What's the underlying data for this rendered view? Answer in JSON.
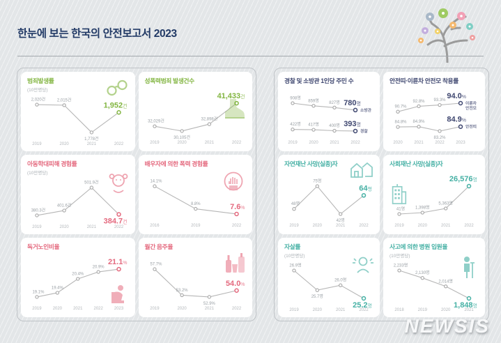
{
  "header": {
    "title": "한눈에 보는 한국의 안전보고서 2023"
  },
  "watermark": {
    "text": "NEWSIS"
  },
  "chart_data": [
    {
      "type": "line",
      "name": "crime-rate",
      "group": "left",
      "title": "범죄발생률",
      "subtitle": "(10만명당)",
      "color": "#82b541",
      "icon": "handcuffs-icon",
      "categories": [
        "2019",
        "2020",
        "2021",
        "2022"
      ],
      "series": [
        {
          "name": "",
          "values": [
            2020,
            2015,
            1778,
            1952
          ],
          "labels": [
            "2,020건",
            "2,015건",
            "1,778건"
          ],
          "highlight": {
            "value": "1,952",
            "unit": "건",
            "pos": "above"
          }
        }
      ]
    },
    {
      "type": "line",
      "name": "sexual-violence-cases",
      "group": "left",
      "title": "성폭력범죄 발생건수",
      "subtitle": "",
      "color": "#82b541",
      "icon": "boot-icon",
      "categories": [
        "2019",
        "2020",
        "2021",
        "2022"
      ],
      "series": [
        {
          "name": "",
          "values": [
            32029,
            30105,
            32898,
            41433
          ],
          "labels": [
            "32,029건",
            "30,105건",
            "32,898건"
          ],
          "highlight": {
            "value": "41,433",
            "unit": "건",
            "pos": "above"
          }
        }
      ]
    },
    {
      "type": "line",
      "name": "child-abuse-rate",
      "group": "left",
      "title": "아동학대피해 경험률",
      "subtitle": "(10만명당)",
      "color": "#e4697e",
      "icon": "child-icon",
      "categories": [
        "2019",
        "2020",
        "2021",
        "2022"
      ],
      "series": [
        {
          "name": "",
          "values": [
            380.3,
            401.6,
            501.9,
            384.7
          ],
          "labels": [
            "380.3건",
            "401.6건",
            "501.9건"
          ],
          "highlight": {
            "value": "384.7",
            "unit": "건",
            "pos": "below"
          }
        }
      ]
    },
    {
      "type": "line",
      "name": "spousal-violence-rate",
      "group": "left",
      "title": "배우자에 의한 폭력 경험률",
      "subtitle": "",
      "color": "#e4697e",
      "icon": "hand-icon",
      "categories": [
        "2016",
        "2019",
        "2022"
      ],
      "series": [
        {
          "name": "",
          "values": [
            14.1,
            8.8,
            7.6
          ],
          "labels": [
            "14.1%",
            "8.8%"
          ],
          "highlight": {
            "value": "7.6",
            "unit": "%",
            "pos": "above"
          }
        }
      ]
    },
    {
      "type": "line",
      "name": "elderly-living-alone-rate",
      "group": "left",
      "title": "독거노인비율",
      "subtitle": "",
      "color": "#e4697e",
      "icon": "person-chair-icon",
      "categories": [
        "2019",
        "2020",
        "2021",
        "2022",
        "2023"
      ],
      "series": [
        {
          "name": "",
          "values": [
            19.1,
            19.4,
            20.4,
            20.9,
            21.1
          ],
          "labels": [
            "19.1%",
            "19.4%",
            "20.4%",
            "20.9%"
          ],
          "highlight": {
            "value": "21.1",
            "unit": "%",
            "pos": "above"
          }
        }
      ]
    },
    {
      "type": "line",
      "name": "monthly-drinking-rate",
      "group": "left",
      "title": "월간 음주율",
      "subtitle": "",
      "color": "#e4697e",
      "icon": "bottles-icon",
      "categories": [
        "2019",
        "2020",
        "2021",
        "2022"
      ],
      "series": [
        {
          "name": "",
          "values": [
            57.7,
            53.2,
            52.9,
            54.0
          ],
          "labels": [
            "57.7%",
            "53.2%",
            "52.9%"
          ],
          "highlight": {
            "value": "54.0",
            "unit": "%",
            "pos": "above"
          }
        }
      ]
    },
    {
      "type": "line",
      "name": "residents-per-police-firefighter",
      "group": "right",
      "title": "경찰 및 소방관 1인당 주민 수",
      "subtitle": "",
      "color": "#3e466f",
      "icon": "",
      "categories": [
        "2019",
        "2020",
        "2021",
        "2022"
      ],
      "series": [
        {
          "name": "소방관",
          "values": [
            908,
            859,
            827,
            780
          ],
          "labels": [
            "908명",
            "859명",
            "827명"
          ],
          "highlight": {
            "value": "780",
            "unit": "명",
            "pos": "above"
          }
        },
        {
          "name": "경찰",
          "values": [
            422,
            417,
            400,
            393
          ],
          "labels": [
            "422명",
            "417명",
            "400명"
          ],
          "highlight": {
            "value": "393",
            "unit": "명",
            "pos": "above"
          }
        }
      ]
    },
    {
      "type": "line",
      "name": "seatbelt-helmet-wearing-rate",
      "group": "right",
      "title": "안전띠·이륜차 안전모 착용률",
      "subtitle": "",
      "color": "#3e466f",
      "icon": "",
      "categories": [
        "2020",
        "2021",
        "2022",
        "2023"
      ],
      "series": [
        {
          "name": "이륜차\n안전모",
          "values": [
            90.7,
            92.8,
            93.3,
            94.0
          ],
          "labels": [
            "90.7%",
            "92.8%",
            "93.3%"
          ],
          "highlight": {
            "value": "94.0",
            "unit": "%",
            "pos": "above"
          }
        },
        {
          "name": "안전띠",
          "values": [
            84.8,
            84.9,
            83.2,
            84.9
          ],
          "labels": [
            "84.8%",
            "84.9%",
            "83.2%"
          ],
          "highlight": {
            "value": "84.9",
            "unit": "%",
            "pos": "above"
          }
        }
      ]
    },
    {
      "type": "line",
      "name": "natural-disaster-deaths",
      "group": "right",
      "title": "자연재난 사망(실종)자",
      "subtitle": "",
      "color": "#45b0a4",
      "icon": "houses-icon",
      "categories": [
        "2019",
        "2020",
        "2021",
        "2022"
      ],
      "series": [
        {
          "name": "",
          "values": [
            48,
            75,
            42,
            64
          ],
          "labels": [
            "48명",
            "75명",
            "42명"
          ],
          "highlight": {
            "value": "64",
            "unit": "명",
            "pos": "above"
          }
        }
      ]
    },
    {
      "type": "line",
      "name": "social-disaster-deaths",
      "group": "right",
      "title": "사회재난 사망(실종)자",
      "subtitle": "",
      "color": "#45b0a4",
      "icon": "building-icon",
      "categories": [
        "2019",
        "2020",
        "2021",
        "2022"
      ],
      "series": [
        {
          "name": "",
          "values": [
            41,
            1398,
            5363,
            26576
          ],
          "labels": [
            "41명",
            "1,398명",
            "5,363명"
          ],
          "highlight": {
            "value": "26,576",
            "unit": "명",
            "pos": "above"
          }
        }
      ]
    },
    {
      "type": "line",
      "name": "suicide-rate",
      "group": "right",
      "title": "자살률",
      "subtitle": "(10만명당)",
      "color": "#45b0a4",
      "icon": "person-cry-icon",
      "categories": [
        "2019",
        "2020",
        "2021",
        "2022"
      ],
      "series": [
        {
          "name": "",
          "values": [
            26.9,
            25.7,
            26.0,
            25.2
          ],
          "labels": [
            "26.9명",
            "25.7명",
            "26.0명"
          ],
          "highlight": {
            "value": "25.2",
            "unit": "명",
            "pos": "below"
          }
        }
      ]
    },
    {
      "type": "line",
      "name": "accident-hospitalization-rate",
      "group": "right",
      "title": "사고에 의한 병원 입원율",
      "subtitle": "(10만명당)",
      "color": "#45b0a4",
      "icon": "crutch-person-icon",
      "categories": [
        "2018",
        "2019",
        "2020",
        "2021"
      ],
      "series": [
        {
          "name": "",
          "values": [
            2233,
            2130,
            2014,
            1848
          ],
          "labels": [
            "2,233명",
            "2,130명",
            "2,014명"
          ],
          "highlight": {
            "value": "1,848",
            "unit": "명",
            "pos": "below"
          }
        }
      ]
    }
  ]
}
